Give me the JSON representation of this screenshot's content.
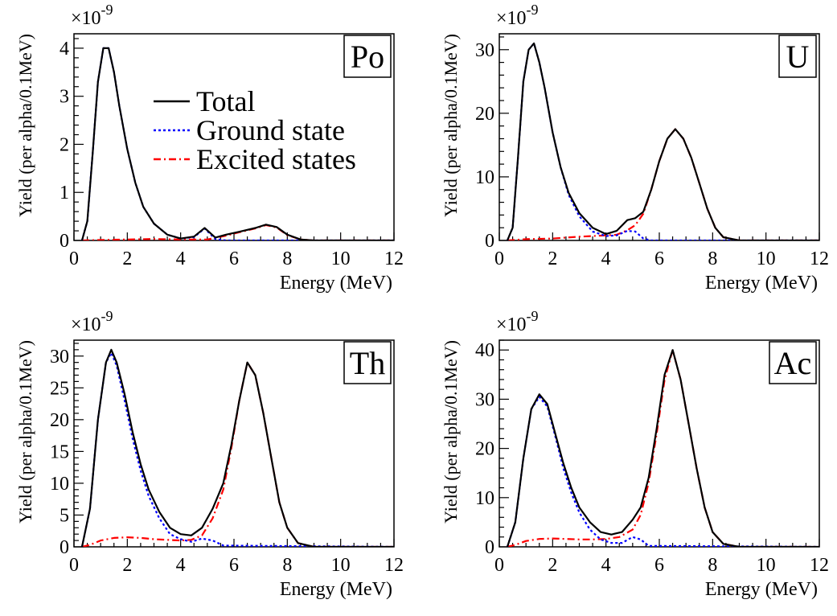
{
  "figure": {
    "legend": [
      {
        "label": "Total",
        "color": "#000000",
        "style": "solid"
      },
      {
        "label": "Ground state",
        "color": "#0000ff",
        "style": "dotted"
      },
      {
        "label": "Excited states",
        "color": "#ff0000",
        "style": "dashdot"
      }
    ]
  },
  "chart_data": [
    {
      "type": "line",
      "panel_label": "Po",
      "xlabel": "Energy (MeV)",
      "ylabel": "Yield (per alpha/0.1MeV)",
      "y_multiplier": "×10-9",
      "y_multiplier_base": "×10",
      "y_multiplier_exp": "-9",
      "xlim": [
        0,
        12
      ],
      "ylim": [
        0,
        4.3
      ],
      "x_ticks": [
        0,
        2,
        4,
        6,
        8,
        10,
        12
      ],
      "y_ticks": [
        0,
        1,
        2,
        3,
        4
      ],
      "series": [
        {
          "name": "Total",
          "x": [
            0.3,
            0.5,
            0.7,
            0.9,
            1.1,
            1.3,
            1.5,
            1.7,
            2.0,
            2.3,
            2.6,
            3.0,
            3.5,
            4.0,
            4.5,
            4.9,
            5.3,
            5.7,
            6.2,
            6.8,
            7.2,
            7.6,
            8.0,
            8.5,
            9.0,
            12.0
          ],
          "y": [
            0,
            0.4,
            1.8,
            3.3,
            4.0,
            4.0,
            3.5,
            2.8,
            1.9,
            1.2,
            0.7,
            0.35,
            0.12,
            0.04,
            0.08,
            0.26,
            0.06,
            0.12,
            0.18,
            0.26,
            0.33,
            0.28,
            0.12,
            0.02,
            0,
            0
          ]
        },
        {
          "name": "Ground state",
          "x": [
            0.3,
            0.5,
            0.7,
            0.9,
            1.1,
            1.3,
            1.5,
            1.7,
            2.0,
            2.3,
            2.6,
            3.0,
            3.5,
            4.0,
            4.5,
            4.9,
            5.3,
            5.7,
            6.5,
            12.0
          ],
          "y": [
            0,
            0.4,
            1.8,
            3.3,
            4.0,
            4.0,
            3.5,
            2.8,
            1.9,
            1.2,
            0.7,
            0.35,
            0.12,
            0.04,
            0.07,
            0.25,
            0.03,
            0,
            0,
            0
          ]
        },
        {
          "name": "Excited states",
          "x": [
            0.3,
            1.0,
            2.0,
            3.0,
            4.0,
            5.0,
            5.7,
            6.2,
            6.8,
            7.2,
            7.6,
            8.0,
            8.5,
            9.0,
            12.0
          ],
          "y": [
            0,
            0.01,
            0.02,
            0.03,
            0.02,
            0.02,
            0.1,
            0.17,
            0.25,
            0.32,
            0.27,
            0.11,
            0.02,
            0,
            0
          ]
        }
      ]
    },
    {
      "type": "line",
      "panel_label": "U",
      "xlabel": "Energy (MeV)",
      "ylabel": "Yield (per alpha/0.1MeV)",
      "y_multiplier": "×10-9",
      "y_multiplier_base": "×10",
      "y_multiplier_exp": "-9",
      "xlim": [
        0,
        12
      ],
      "ylim": [
        0,
        32.5
      ],
      "x_ticks": [
        0,
        2,
        4,
        6,
        8,
        10,
        12
      ],
      "y_ticks": [
        0,
        10,
        20,
        30
      ],
      "series": [
        {
          "name": "Total",
          "x": [
            0.3,
            0.5,
            0.7,
            0.9,
            1.1,
            1.3,
            1.5,
            1.7,
            2.0,
            2.3,
            2.6,
            3.0,
            3.5,
            4.0,
            4.4,
            4.8,
            5.1,
            5.4,
            5.7,
            6.0,
            6.3,
            6.6,
            6.9,
            7.2,
            7.5,
            7.8,
            8.1,
            8.4,
            9.0,
            12.0
          ],
          "y": [
            0,
            2,
            13,
            25,
            30,
            31,
            28,
            24,
            17,
            11.5,
            7.5,
            4.3,
            2.0,
            1.0,
            1.5,
            3.2,
            3.5,
            4.5,
            8,
            12.5,
            16,
            17.5,
            16,
            13,
            9,
            5,
            2,
            0.5,
            0,
            0
          ]
        },
        {
          "name": "Ground state",
          "x": [
            0.3,
            0.5,
            0.7,
            0.9,
            1.1,
            1.3,
            1.5,
            1.7,
            2.0,
            2.3,
            2.6,
            3.0,
            3.5,
            4.0,
            4.4,
            4.8,
            5.1,
            5.4,
            5.7,
            12.0
          ],
          "y": [
            0,
            2,
            13,
            25,
            30,
            31,
            28,
            24,
            17,
            11.5,
            7.2,
            3.8,
            1.4,
            0.7,
            0.8,
            1.5,
            1.4,
            0.3,
            0,
            0
          ]
        },
        {
          "name": "Excited states",
          "x": [
            0.3,
            1.0,
            2.0,
            3.0,
            4.0,
            4.4,
            4.8,
            5.1,
            5.4,
            5.7,
            6.0,
            6.3,
            6.6,
            6.9,
            7.2,
            7.5,
            7.8,
            8.1,
            8.4,
            9.0,
            12.0
          ],
          "y": [
            0,
            0.2,
            0.3,
            0.6,
            0.8,
            0.9,
            1.6,
            2.4,
            4.2,
            8,
            12.5,
            16,
            17.5,
            16,
            13,
            9,
            5,
            2,
            0.5,
            0,
            0
          ]
        }
      ]
    },
    {
      "type": "line",
      "panel_label": "Th",
      "xlabel": "Energy (MeV)",
      "ylabel": "Yield (per alpha/0.1MeV)",
      "y_multiplier": "×10-9",
      "y_multiplier_base": "×10",
      "y_multiplier_exp": "-9",
      "xlim": [
        0,
        12
      ],
      "ylim": [
        0,
        32.5
      ],
      "x_ticks": [
        0,
        2,
        4,
        6,
        8,
        10,
        12
      ],
      "y_ticks": [
        0,
        5,
        10,
        15,
        20,
        25,
        30
      ],
      "series": [
        {
          "name": "Total",
          "x": [
            0.3,
            0.6,
            0.9,
            1.2,
            1.4,
            1.6,
            1.9,
            2.2,
            2.5,
            2.8,
            3.2,
            3.6,
            4.0,
            4.4,
            4.8,
            5.2,
            5.6,
            5.9,
            6.2,
            6.5,
            6.8,
            7.1,
            7.4,
            7.7,
            8.0,
            8.4,
            9.0,
            12.0
          ],
          "y": [
            0,
            6,
            20,
            29,
            31,
            29,
            24,
            18,
            13,
            9,
            5.5,
            3,
            2,
            1.8,
            3,
            6,
            10,
            16,
            23,
            29,
            27,
            21,
            14,
            7,
            3,
            0.6,
            0,
            0
          ]
        },
        {
          "name": "Ground state",
          "x": [
            0.3,
            0.6,
            0.9,
            1.2,
            1.4,
            1.6,
            1.9,
            2.2,
            2.5,
            2.8,
            3.2,
            3.6,
            4.0,
            4.4,
            4.8,
            5.2,
            5.6,
            12.0
          ],
          "y": [
            0,
            6,
            20,
            29,
            30.5,
            28.5,
            23,
            17,
            12,
            8,
            4.5,
            2,
            1.2,
            0.8,
            1.3,
            1.0,
            0.2,
            0
          ]
        },
        {
          "name": "Excited states",
          "x": [
            0.3,
            0.6,
            1.0,
            1.5,
            2.0,
            2.5,
            3.0,
            3.5,
            4.0,
            4.4,
            4.8,
            5.2,
            5.6,
            5.9,
            6.2,
            6.5,
            6.8,
            7.1,
            7.4,
            7.7,
            8.0,
            8.4,
            9.0,
            12.0
          ],
          "y": [
            0,
            0.3,
            1.0,
            1.4,
            1.5,
            1.4,
            1.2,
            1.1,
            1.0,
            1.1,
            1.8,
            4.5,
            9,
            15.5,
            23,
            29,
            27,
            21,
            14,
            7,
            3,
            0.6,
            0,
            0
          ]
        }
      ]
    },
    {
      "type": "line",
      "panel_label": "Ac",
      "xlabel": "Energy (MeV)",
      "ylabel": "Yield (per alpha/0.1MeV)",
      "y_multiplier": "×10-9",
      "y_multiplier_base": "×10",
      "y_multiplier_exp": "-9",
      "xlim": [
        0,
        12
      ],
      "ylim": [
        0,
        42
      ],
      "x_ticks": [
        0,
        2,
        4,
        6,
        8,
        10,
        12
      ],
      "y_ticks": [
        0,
        10,
        20,
        30,
        40
      ],
      "series": [
        {
          "name": "Total",
          "x": [
            0.3,
            0.6,
            0.9,
            1.2,
            1.5,
            1.8,
            2.1,
            2.4,
            2.7,
            3.0,
            3.4,
            3.8,
            4.2,
            4.6,
            5.0,
            5.3,
            5.6,
            5.9,
            6.2,
            6.5,
            6.8,
            7.1,
            7.4,
            7.7,
            8.0,
            8.4,
            9.0,
            12.0
          ],
          "y": [
            0,
            5,
            18,
            28,
            31,
            29,
            23,
            17,
            12,
            8,
            5,
            3,
            2.5,
            3,
            5.5,
            8,
            14,
            24,
            35,
            40,
            34,
            25,
            16,
            8,
            3,
            0.6,
            0,
            0
          ]
        },
        {
          "name": "Ground state",
          "x": [
            0.3,
            0.6,
            0.9,
            1.2,
            1.5,
            1.8,
            2.1,
            2.4,
            2.7,
            3.0,
            3.4,
            3.8,
            4.2,
            4.6,
            5.0,
            5.3,
            5.6,
            12.0
          ],
          "y": [
            0,
            5,
            18,
            28,
            30.5,
            28.5,
            22.5,
            16,
            11,
            7,
            3.5,
            1.5,
            0.8,
            0.8,
            2.0,
            1.5,
            0.2,
            0
          ]
        },
        {
          "name": "Excited states",
          "x": [
            0.3,
            0.6,
            1.0,
            1.5,
            2.0,
            2.5,
            3.0,
            3.5,
            4.0,
            4.5,
            5.0,
            5.3,
            5.6,
            5.9,
            6.2,
            6.5,
            6.8,
            7.1,
            7.4,
            7.7,
            8.0,
            8.4,
            9.0,
            12.0
          ],
          "y": [
            0,
            0.4,
            1.2,
            1.6,
            1.7,
            1.6,
            1.5,
            1.5,
            1.6,
            2.0,
            3.5,
            6.5,
            13,
            23,
            34,
            40,
            34,
            25,
            16,
            8,
            3,
            0.6,
            0,
            0
          ]
        }
      ]
    }
  ]
}
